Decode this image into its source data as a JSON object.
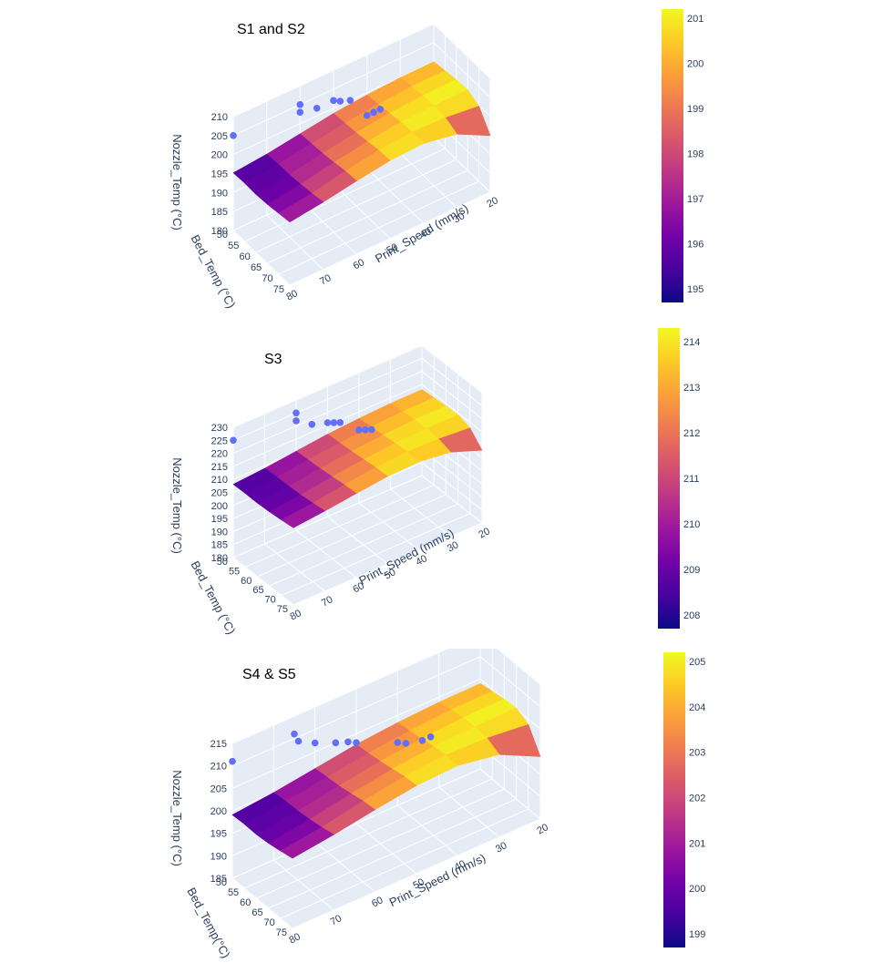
{
  "colorscale": [
    "#0d0887",
    "#46039f",
    "#7201a8",
    "#9c179e",
    "#bd3786",
    "#d8576b",
    "#ed7953",
    "#fb9f3a",
    "#fdca26",
    "#f0f921"
  ],
  "marker_color": "#636efa",
  "chart_data": [
    {
      "type": "scatter3d+surface",
      "title": "S1 and S2",
      "xlabel": "Print_Speed  (mm/s)",
      "ylabel": "Bed_Temp (°C)",
      "zlabel": "Nozzle_Temp (°C)",
      "x_ticks": [
        "20",
        "30",
        "40",
        "50",
        "60",
        "70",
        "80"
      ],
      "y_ticks": [
        "50",
        "55",
        "60",
        "65",
        "70",
        "75"
      ],
      "z_ticks": [
        "180",
        "185",
        "190",
        "195",
        "200",
        "205",
        "210"
      ],
      "xlim": [
        20,
        80
      ],
      "ylim": [
        50,
        75
      ],
      "zlim": [
        180,
        210
      ],
      "colorbar": {
        "min": 194.7,
        "max": 201.2,
        "ticks": [
          "195",
          "196",
          "197",
          "198",
          "199",
          "200",
          "201"
        ]
      },
      "surface_z": [
        [
          195.2,
          195.4,
          195.3,
          195.6,
          196.1,
          196.6
        ],
        [
          196.0,
          196.3,
          196.4,
          196.7,
          197.2,
          197.8
        ],
        [
          197.3,
          197.6,
          197.9,
          198.4,
          199.0,
          199.3
        ],
        [
          198.6,
          198.9,
          199.3,
          199.8,
          200.4,
          200.6
        ],
        [
          199.4,
          199.8,
          200.3,
          200.8,
          201.1,
          201.0
        ],
        [
          199.9,
          200.4,
          200.9,
          201.1,
          200.8,
          199.4
        ],
        [
          200.0,
          200.5,
          201.0,
          201.2,
          199.8,
          194.9
        ]
      ],
      "points": [
        {
          "x": 80,
          "y": 50,
          "z": 205
        },
        {
          "x": 60,
          "y": 50,
          "z": 205
        },
        {
          "x": 60,
          "y": 50,
          "z": 203
        },
        {
          "x": 55,
          "y": 50,
          "z": 202
        },
        {
          "x": 50,
          "y": 50,
          "z": 202
        },
        {
          "x": 48,
          "y": 50,
          "z": 201
        },
        {
          "x": 45,
          "y": 50,
          "z": 200
        },
        {
          "x": 40,
          "y": 50,
          "z": 194
        },
        {
          "x": 38,
          "y": 50,
          "z": 194
        },
        {
          "x": 36,
          "y": 50,
          "z": 194
        }
      ]
    },
    {
      "type": "scatter3d+surface",
      "title": "S3",
      "xlabel": "Print_Speed  (mm/s)",
      "ylabel": "Bed_Temp (°C)",
      "zlabel": "Nozzle_Temp (°C)",
      "x_ticks": [
        "20",
        "30",
        "40",
        "50",
        "60",
        "70",
        "80"
      ],
      "y_ticks": [
        "50",
        "55",
        "60",
        "65",
        "70",
        "75"
      ],
      "z_ticks": [
        "180",
        "185",
        "190",
        "195",
        "200",
        "205",
        "210",
        "215",
        "220",
        "225",
        "230"
      ],
      "xlim": [
        20,
        80
      ],
      "ylim": [
        50,
        75
      ],
      "zlim": [
        180,
        230
      ],
      "colorbar": {
        "min": 207.7,
        "max": 214.3,
        "ticks": [
          "208",
          "209",
          "210",
          "211",
          "212",
          "213",
          "214"
        ]
      },
      "surface_z": [
        [
          208.1,
          208.3,
          208.2,
          208.5,
          209.0,
          209.6
        ],
        [
          209.0,
          209.3,
          209.4,
          209.7,
          210.2,
          210.8
        ],
        [
          210.3,
          210.6,
          210.9,
          211.4,
          212.0,
          212.3
        ],
        [
          211.6,
          211.9,
          212.3,
          212.8,
          213.4,
          213.6
        ],
        [
          212.4,
          212.8,
          213.3,
          213.8,
          214.1,
          214.0
        ],
        [
          212.9,
          213.4,
          213.9,
          214.1,
          213.8,
          212.4
        ],
        [
          213.0,
          213.5,
          214.0,
          214.2,
          212.8,
          207.9
        ]
      ],
      "points": [
        {
          "x": 80,
          "y": 50,
          "z": 225
        },
        {
          "x": 60,
          "y": 50,
          "z": 225
        },
        {
          "x": 60,
          "y": 50,
          "z": 222
        },
        {
          "x": 55,
          "y": 50,
          "z": 218
        },
        {
          "x": 50,
          "y": 50,
          "z": 216
        },
        {
          "x": 48,
          "y": 50,
          "z": 215
        },
        {
          "x": 46,
          "y": 50,
          "z": 214
        },
        {
          "x": 40,
          "y": 50,
          "z": 208
        },
        {
          "x": 38,
          "y": 50,
          "z": 207
        },
        {
          "x": 36,
          "y": 50,
          "z": 206
        }
      ]
    },
    {
      "type": "scatter3d+surface",
      "title": "S4 & S5",
      "xlabel": "Print_Speed  (mm/s)",
      "ylabel": "Bed_Temp(°C)",
      "zlabel": "Nozzle_Temp (°C)",
      "x_ticks": [
        "20",
        "30",
        "40",
        "50",
        "60",
        "70",
        "80"
      ],
      "y_ticks": [
        "50",
        "55",
        "60",
        "65",
        "70",
        "75"
      ],
      "z_ticks": [
        "185",
        "190",
        "195",
        "200",
        "205",
        "210",
        "215"
      ],
      "xlim": [
        20,
        80
      ],
      "ylim": [
        50,
        75
      ],
      "zlim": [
        185,
        215
      ],
      "colorbar": {
        "min": 198.7,
        "max": 205.2,
        "ticks": [
          "199",
          "200",
          "201",
          "202",
          "203",
          "204",
          "205"
        ]
      },
      "surface_z": [
        [
          199.1,
          199.3,
          199.2,
          199.5,
          200.0,
          200.6
        ],
        [
          200.0,
          200.3,
          200.4,
          200.7,
          201.2,
          201.8
        ],
        [
          201.3,
          201.6,
          201.9,
          202.4,
          203.0,
          203.3
        ],
        [
          202.6,
          202.9,
          203.3,
          203.8,
          204.4,
          204.6
        ],
        [
          203.4,
          203.8,
          204.3,
          204.8,
          205.1,
          205.0
        ],
        [
          203.9,
          204.4,
          204.9,
          205.1,
          204.8,
          203.4
        ],
        [
          204.0,
          204.5,
          205.0,
          205.2,
          203.8,
          198.9
        ]
      ],
      "points": [
        {
          "x": 80,
          "y": 50,
          "z": 211
        },
        {
          "x": 65,
          "y": 50,
          "z": 211
        },
        {
          "x": 64,
          "y": 50,
          "z": 209
        },
        {
          "x": 60,
          "y": 50,
          "z": 207
        },
        {
          "x": 55,
          "y": 50,
          "z": 205
        },
        {
          "x": 52,
          "y": 50,
          "z": 204
        },
        {
          "x": 50,
          "y": 50,
          "z": 203
        },
        {
          "x": 40,
          "y": 50,
          "z": 199
        },
        {
          "x": 38,
          "y": 50,
          "z": 198
        },
        {
          "x": 34,
          "y": 50,
          "z": 197
        },
        {
          "x": 32,
          "y": 50,
          "z": 197
        }
      ]
    }
  ]
}
